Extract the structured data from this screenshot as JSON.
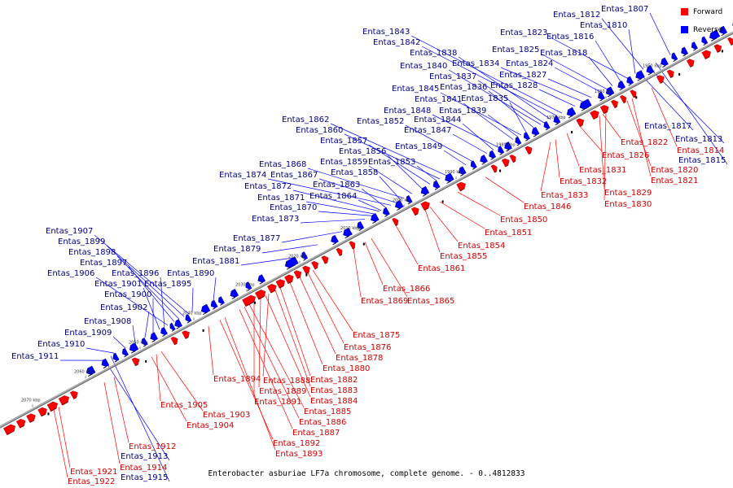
{
  "caption": "Enterobacter asburiae LF7a chromosome, complete genome. - 0..4812833",
  "legend": {
    "forward_label": "Forward",
    "forward_color": "#ff0000",
    "reverse_label": "Reverse",
    "reverse_color": "#0000ff"
  },
  "colors": {
    "forward_label": "#cc0000",
    "reverse_label": "#00007f",
    "backbone": "#999999"
  },
  "ticks": [
    "2070 kbp",
    "2060 kbp",
    "2050 kbp",
    "2040 kbp",
    "2030 kbp",
    "2020 kbp",
    "2010 kbp",
    "2000 kbp",
    "1990 kbp",
    "1980 kbp",
    "1970 kbp",
    "1960 kbp",
    "1950 kbp"
  ],
  "reverse_genes": [
    "Entas_1807",
    "Entas_1810",
    "Entas_1812",
    "Entas_1813",
    "Entas_1815",
    "Entas_1816",
    "Entas_1817",
    "Entas_1818",
    "Entas_1823",
    "Entas_1824",
    "Entas_1825",
    "Entas_1827",
    "Entas_1828",
    "Entas_1834",
    "Entas_1835",
    "Entas_1836",
    "Entas_1837",
    "Entas_1838",
    "Entas_1839",
    "Entas_1840",
    "Entas_1841",
    "Entas_1842",
    "Entas_1843",
    "Entas_1844",
    "Entas_1845",
    "Entas_1847",
    "Entas_1848",
    "Entas_1849",
    "Entas_1852",
    "Entas_1853",
    "Entas_1856",
    "Entas_1857",
    "Entas_1858",
    "Entas_1859",
    "Entas_1860",
    "Entas_1862",
    "Entas_1863",
    "Entas_1864",
    "Entas_1867",
    "Entas_1868",
    "Entas_1870",
    "Entas_1871",
    "Entas_1872",
    "Entas_1873",
    "Entas_1874",
    "Entas_1877",
    "Entas_1879",
    "Entas_1881",
    "Entas_1890",
    "Entas_1895",
    "Entas_1896",
    "Entas_1897",
    "Entas_1898",
    "Entas_1899",
    "Entas_1900",
    "Entas_1901",
    "Entas_1902",
    "Entas_1906",
    "Entas_1907",
    "Entas_1908",
    "Entas_1909",
    "Entas_1910",
    "Entas_1911",
    "Entas_1913",
    "Entas_1915"
  ],
  "forward_genes": [
    "Entas_1814",
    "Entas_1820",
    "Entas_1821",
    "Entas_1822",
    "Entas_1826",
    "Entas_1829",
    "Entas_1830",
    "Entas_1831",
    "Entas_1832",
    "Entas_1833",
    "Entas_1846",
    "Entas_1850",
    "Entas_1851",
    "Entas_1854",
    "Entas_1855",
    "Entas_1861",
    "Entas_1865",
    "Entas_1866",
    "Entas_1869",
    "Entas_1875",
    "Entas_1876",
    "Entas_1878",
    "Entas_1880",
    "Entas_1882",
    "Entas_1883",
    "Entas_1884",
    "Entas_1885",
    "Entas_1886",
    "Entas_1887",
    "Entas_1888",
    "Entas_1889",
    "Entas_1891",
    "Entas_1892",
    "Entas_1893",
    "Entas_1894",
    "Entas_1903",
    "Entas_1904",
    "Entas_1905",
    "Entas_1912",
    "Entas_1914",
    "Entas_1921",
    "Entas_1922"
  ]
}
